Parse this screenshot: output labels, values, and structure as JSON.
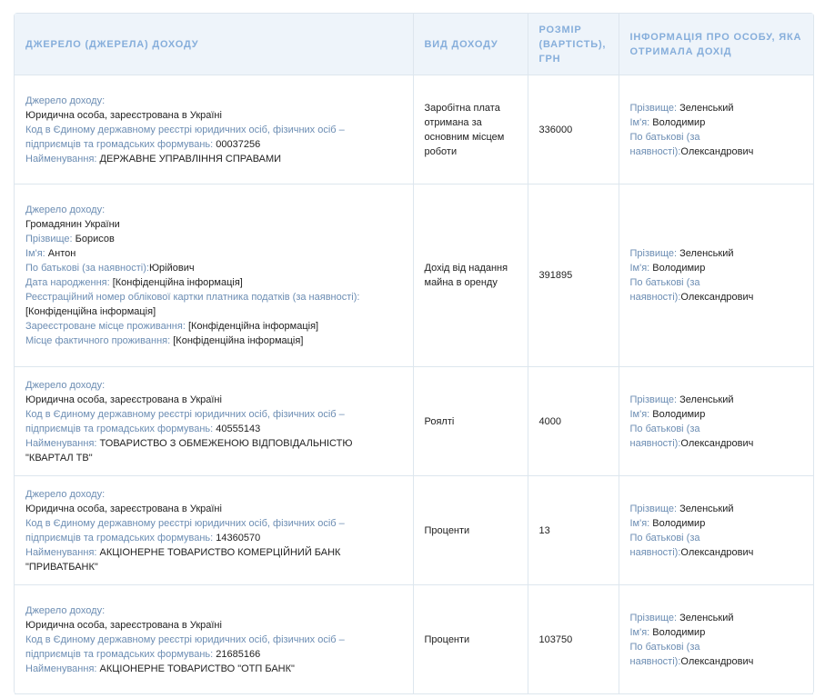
{
  "header": {
    "columns": [
      "Джерело (джерела) доходу",
      "Вид доходу",
      "Розмір (вартість), грн",
      "Інформація про особу, яка отримала дохід"
    ]
  },
  "rows": [
    {
      "source": [
        {
          "label": "Джерело доходу:"
        },
        {
          "value": "Юридична особа, зареєстрована в Україні"
        },
        {
          "label": "Код в Єдиному державному реєстрі юридичних осіб, фізичних осіб – підприємців та громадських формувань: ",
          "value": "00037256"
        },
        {
          "label": "Найменування: ",
          "value": "ДЕРЖАВНЕ УПРАВЛІННЯ СПРАВАМИ"
        }
      ],
      "income_type": "Заробітна плата отримана за основним місцем роботи",
      "amount": "336000",
      "recipient": [
        {
          "label": "Прізвище: ",
          "value": "Зеленський"
        },
        {
          "label": "Ім'я: ",
          "value": "Володимир"
        },
        {
          "label": "По батькові (за наявності):",
          "value": "Олександрович"
        }
      ]
    },
    {
      "source": [
        {
          "label": "Джерело доходу:"
        },
        {
          "value": "Громадянин України"
        },
        {
          "label": "Прізвище: ",
          "value": "Борисов"
        },
        {
          "label": "Ім'я: ",
          "value": "Антон"
        },
        {
          "label": "По батькові (за наявності):",
          "value": "Юрійович"
        },
        {
          "label": "Дата народження: ",
          "value": "[Конфіденційна інформація]"
        },
        {
          "label": "Реєстраційний номер облікової картки платника податків (за наявності): ",
          "value": "[Конфіденційна інформація]"
        },
        {
          "label": "Зареєстроване місце проживання: ",
          "value": "[Конфіденційна інформація]"
        },
        {
          "label": "Місце фактичного проживання: ",
          "value": "[Конфіденційна інформація]"
        }
      ],
      "income_type": "Дохід від надання майна в оренду",
      "amount": "391895",
      "recipient": [
        {
          "label": "Прізвище: ",
          "value": "Зеленський"
        },
        {
          "label": "Ім'я: ",
          "value": "Володимир"
        },
        {
          "label": "По батькові (за наявності):",
          "value": "Олександрович"
        }
      ]
    },
    {
      "source": [
        {
          "label": "Джерело доходу:"
        },
        {
          "value": "Юридична особа, зареєстрована в Україні"
        },
        {
          "label": "Код в Єдиному державному реєстрі юридичних осіб, фізичних осіб – підприємців та громадських формувань: ",
          "value": "40555143"
        },
        {
          "label": "Найменування: ",
          "value": "ТОВАРИСТВО З ОБМЕЖЕНОЮ ВІДПОВІДАЛЬНІСТЮ \"КВАРТАЛ ТВ\""
        }
      ],
      "income_type": "Роялті",
      "amount": "4000",
      "recipient": [
        {
          "label": "Прізвище: ",
          "value": "Зеленський"
        },
        {
          "label": "Ім'я: ",
          "value": "Володимир"
        },
        {
          "label": "По батькові (за наявності):",
          "value": "Олександрович"
        }
      ]
    },
    {
      "source": [
        {
          "label": "Джерело доходу:"
        },
        {
          "value": "Юридична особа, зареєстрована в Україні"
        },
        {
          "label": "Код в Єдиному державному реєстрі юридичних осіб, фізичних осіб – підприємців та громадських формувань: ",
          "value": "14360570"
        },
        {
          "label": "Найменування: ",
          "value": "АКЦІОНЕРНЕ ТОВАРИСТВО КОМЕРЦІЙНИЙ БАНК \"ПРИВАТБАНК\""
        }
      ],
      "income_type": "Проценти",
      "amount": "13",
      "recipient": [
        {
          "label": "Прізвище: ",
          "value": "Зеленський"
        },
        {
          "label": "Ім'я: ",
          "value": "Володимир"
        },
        {
          "label": "По батькові (за наявності):",
          "value": "Олександрович"
        }
      ]
    },
    {
      "source": [
        {
          "label": "Джерело доходу:"
        },
        {
          "value": "Юридична особа, зареєстрована в Україні"
        },
        {
          "label": "Код в Єдиному державному реєстрі юридичних осіб, фізичних осіб – підприємців та громадських формувань: ",
          "value": "21685166"
        },
        {
          "label": "Найменування: ",
          "value": "АКЦІОНЕРНЕ ТОВАРИСТВО \"ОТП БАНК\""
        }
      ],
      "income_type": "Проценти",
      "amount": "103750",
      "recipient": [
        {
          "label": "Прізвище: ",
          "value": "Зеленський"
        },
        {
          "label": "Ім'я: ",
          "value": "Володимир"
        },
        {
          "label": "По батькові (за наявності):",
          "value": "Олександрович"
        }
      ]
    }
  ]
}
